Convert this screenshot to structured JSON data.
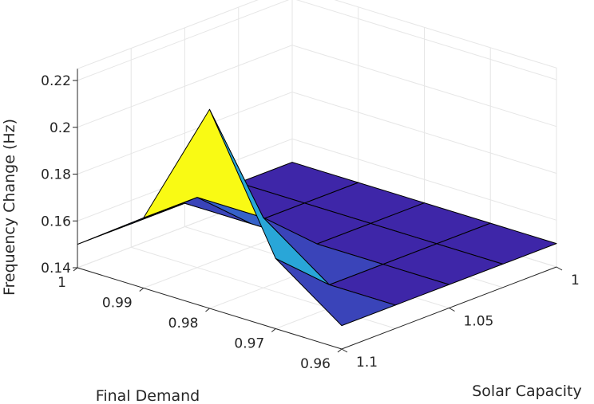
{
  "chart_data": {
    "type": "surface",
    "title": "",
    "xlabel": "Final Demand",
    "ylabel": "Solar Capacity",
    "zlabel": "Frequency Change (Hz)",
    "x": [
      1.0,
      0.99,
      0.98,
      0.97,
      0.96
    ],
    "y": [
      1.0,
      1.025,
      1.05,
      1.075,
      1.1
    ],
    "z": [
      [
        0.15,
        0.15,
        0.15,
        0.15,
        0.15
      ],
      [
        0.15,
        0.15,
        0.15,
        0.15,
        0.15
      ],
      [
        0.15,
        0.15,
        0.15,
        0.15,
        0.15
      ],
      [
        0.15,
        0.17,
        0.17,
        0.15,
        0.15
      ],
      [
        0.15,
        0.17,
        0.225,
        0.17,
        0.15
      ]
    ],
    "xlim": [
      0.96,
      1.0
    ],
    "ylim": [
      1.0,
      1.1
    ],
    "zlim": [
      0.14,
      0.225
    ],
    "x_ticks": [
      "1",
      "0.99",
      "0.98",
      "0.97",
      "0.96"
    ],
    "y_ticks": [
      "1",
      "1.05",
      "1.1"
    ],
    "z_ticks": [
      "0.14",
      "0.16",
      "0.18",
      "0.2",
      "0.22"
    ],
    "grid": true,
    "colormap": [
      "#3e26a8",
      "#2f97e6",
      "#23b3cc",
      "#8bcb4e",
      "#f9fa14"
    ]
  }
}
